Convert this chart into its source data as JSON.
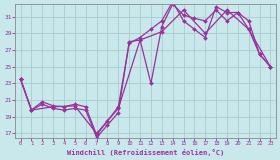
{
  "xlabel": "Windchill (Refroidissement éolien,°C)",
  "bg_color": "#c8e8ec",
  "line_color": "#993399",
  "grid_color": "#aacccc",
  "ylim": [
    16.5,
    32.5
  ],
  "xlim": [
    -0.5,
    23.5
  ],
  "yticks": [
    17,
    19,
    21,
    23,
    25,
    27,
    29,
    31
  ],
  "xticks": [
    0,
    1,
    2,
    3,
    4,
    5,
    6,
    7,
    8,
    9,
    10,
    11,
    12,
    13,
    14,
    15,
    16,
    17,
    18,
    19,
    20,
    21,
    22,
    23
  ],
  "line1_x": [
    0,
    1,
    2,
    3,
    4,
    5,
    6,
    7,
    8,
    9,
    10,
    11,
    12,
    13,
    14,
    15,
    16,
    17,
    18,
    19,
    20,
    21,
    22,
    23
  ],
  "line1_y": [
    23.5,
    19.8,
    20.5,
    20.0,
    19.8,
    20.0,
    19.8,
    16.5,
    18.0,
    19.5,
    28.0,
    28.2,
    23.0,
    29.8,
    32.5,
    31.2,
    30.8,
    30.5,
    31.8,
    30.5,
    31.5,
    29.5,
    26.5,
    25.0
  ],
  "line2_x": [
    0,
    1,
    2,
    3,
    4,
    5,
    6,
    7,
    8,
    9,
    10,
    11,
    12,
    13,
    14,
    15,
    16,
    17,
    18,
    19,
    20,
    21,
    22,
    23
  ],
  "line2_y": [
    23.5,
    19.8,
    20.8,
    20.3,
    20.2,
    20.5,
    20.2,
    16.8,
    18.5,
    20.2,
    27.8,
    28.5,
    29.5,
    30.5,
    32.8,
    30.5,
    29.5,
    28.5,
    32.2,
    31.5,
    31.5,
    30.5,
    26.5,
    25.0
  ],
  "line3_x": [
    0,
    1,
    3,
    5,
    7,
    9,
    11,
    13,
    15,
    17,
    19,
    21,
    23
  ],
  "line3_y": [
    23.5,
    19.8,
    20.2,
    20.3,
    17.0,
    20.0,
    28.2,
    29.2,
    31.8,
    29.0,
    31.8,
    29.5,
    25.0
  ]
}
